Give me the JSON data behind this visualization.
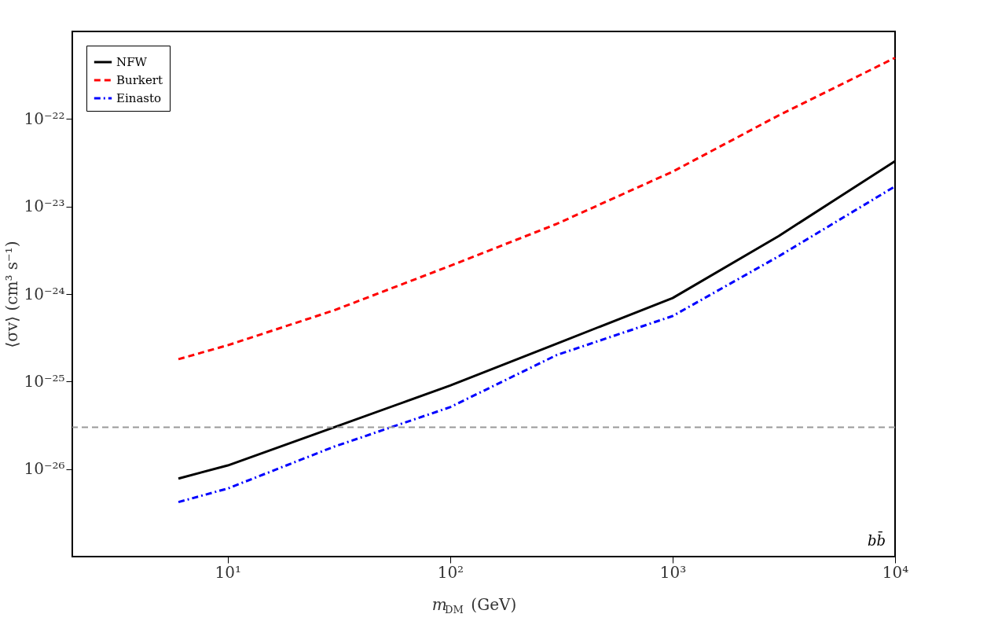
{
  "chart_data": {
    "type": "line",
    "xlabel": "m$_{DM}$ (GeV)",
    "ylabel": "⟨σv⟩ (cm³ s⁻¹)",
    "log": "xy",
    "grid": false,
    "legend": "top left",
    "xlim": [
      2,
      10000
    ],
    "xticks": [
      {
        "value": 10,
        "label": "10¹"
      },
      {
        "value": 100,
        "label": "10²"
      },
      {
        "value": 1000,
        "label": "10³"
      },
      {
        "value": 10000,
        "label": "10⁴"
      }
    ],
    "ylim": [
      1e-27,
      1e-21
    ],
    "yticks": [
      {
        "value": 1e-26,
        "label": "10⁻²⁶"
      },
      {
        "value": 1e-25,
        "label": "10⁻²⁵"
      },
      {
        "value": 1e-24,
        "label": "10⁻²⁴"
      },
      {
        "value": 1e-23,
        "label": "10⁻²³"
      },
      {
        "value": 1e-22,
        "label": "10⁻²²"
      }
    ],
    "x": [
      6,
      10,
      30,
      100,
      300,
      1000,
      3000,
      10000
    ],
    "series": [
      {
        "name": "NFW",
        "color": "#000000",
        "line_style": "solid",
        "values": [
          7.8e-27,
          1.1e-26,
          3e-26,
          9e-26,
          2.7e-25,
          9e-25,
          4.6e-24,
          3.3e-23
        ]
      },
      {
        "name": "Burkert",
        "color": "#ff0000",
        "line_style": "dashed",
        "values": [
          1.8e-25,
          2.6e-25,
          6.5e-25,
          2.1e-24,
          6.3e-24,
          2.5e-23,
          1.1e-22,
          5e-22
        ]
      },
      {
        "name": "Einasto",
        "color": "#0000ff",
        "line_style": "dashdot",
        "values": [
          4.2e-27,
          6e-27,
          1.8e-26,
          5.1e-26,
          2e-25,
          5.6e-25,
          2.7e-24,
          1.7e-23
        ]
      }
    ],
    "ref_lines": [
      {
        "axis": "y",
        "value": 3e-26,
        "color": "#999999",
        "line_style": "dashed"
      }
    ],
    "annotations": [
      "bb̄"
    ]
  }
}
